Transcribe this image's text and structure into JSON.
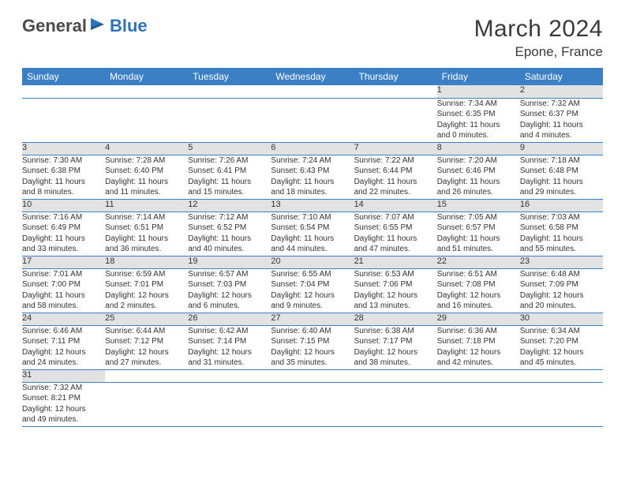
{
  "logo": {
    "general": "General",
    "blue": "Blue"
  },
  "title": "March 2024",
  "location": "Epone, France",
  "colors": {
    "header_bg": "#3b7fc4",
    "header_text": "#ffffff",
    "daynum_bg": "#e2e2e2",
    "row_divider": "#3b7fc4",
    "logo_general": "#4a4a4a",
    "logo_blue": "#2e74b5"
  },
  "day_headers": [
    "Sunday",
    "Monday",
    "Tuesday",
    "Wednesday",
    "Thursday",
    "Friday",
    "Saturday"
  ],
  "weeks": [
    [
      null,
      null,
      null,
      null,
      null,
      {
        "n": "1",
        "sr": "Sunrise: 7:34 AM",
        "ss": "Sunset: 6:35 PM",
        "dl1": "Daylight: 11 hours",
        "dl2": "and 0 minutes."
      },
      {
        "n": "2",
        "sr": "Sunrise: 7:32 AM",
        "ss": "Sunset: 6:37 PM",
        "dl1": "Daylight: 11 hours",
        "dl2": "and 4 minutes."
      }
    ],
    [
      {
        "n": "3",
        "sr": "Sunrise: 7:30 AM",
        "ss": "Sunset: 6:38 PM",
        "dl1": "Daylight: 11 hours",
        "dl2": "and 8 minutes."
      },
      {
        "n": "4",
        "sr": "Sunrise: 7:28 AM",
        "ss": "Sunset: 6:40 PM",
        "dl1": "Daylight: 11 hours",
        "dl2": "and 11 minutes."
      },
      {
        "n": "5",
        "sr": "Sunrise: 7:26 AM",
        "ss": "Sunset: 6:41 PM",
        "dl1": "Daylight: 11 hours",
        "dl2": "and 15 minutes."
      },
      {
        "n": "6",
        "sr": "Sunrise: 7:24 AM",
        "ss": "Sunset: 6:43 PM",
        "dl1": "Daylight: 11 hours",
        "dl2": "and 18 minutes."
      },
      {
        "n": "7",
        "sr": "Sunrise: 7:22 AM",
        "ss": "Sunset: 6:44 PM",
        "dl1": "Daylight: 11 hours",
        "dl2": "and 22 minutes."
      },
      {
        "n": "8",
        "sr": "Sunrise: 7:20 AM",
        "ss": "Sunset: 6:46 PM",
        "dl1": "Daylight: 11 hours",
        "dl2": "and 26 minutes."
      },
      {
        "n": "9",
        "sr": "Sunrise: 7:18 AM",
        "ss": "Sunset: 6:48 PM",
        "dl1": "Daylight: 11 hours",
        "dl2": "and 29 minutes."
      }
    ],
    [
      {
        "n": "10",
        "sr": "Sunrise: 7:16 AM",
        "ss": "Sunset: 6:49 PM",
        "dl1": "Daylight: 11 hours",
        "dl2": "and 33 minutes."
      },
      {
        "n": "11",
        "sr": "Sunrise: 7:14 AM",
        "ss": "Sunset: 6:51 PM",
        "dl1": "Daylight: 11 hours",
        "dl2": "and 36 minutes."
      },
      {
        "n": "12",
        "sr": "Sunrise: 7:12 AM",
        "ss": "Sunset: 6:52 PM",
        "dl1": "Daylight: 11 hours",
        "dl2": "and 40 minutes."
      },
      {
        "n": "13",
        "sr": "Sunrise: 7:10 AM",
        "ss": "Sunset: 6:54 PM",
        "dl1": "Daylight: 11 hours",
        "dl2": "and 44 minutes."
      },
      {
        "n": "14",
        "sr": "Sunrise: 7:07 AM",
        "ss": "Sunset: 6:55 PM",
        "dl1": "Daylight: 11 hours",
        "dl2": "and 47 minutes."
      },
      {
        "n": "15",
        "sr": "Sunrise: 7:05 AM",
        "ss": "Sunset: 6:57 PM",
        "dl1": "Daylight: 11 hours",
        "dl2": "and 51 minutes."
      },
      {
        "n": "16",
        "sr": "Sunrise: 7:03 AM",
        "ss": "Sunset: 6:58 PM",
        "dl1": "Daylight: 11 hours",
        "dl2": "and 55 minutes."
      }
    ],
    [
      {
        "n": "17",
        "sr": "Sunrise: 7:01 AM",
        "ss": "Sunset: 7:00 PM",
        "dl1": "Daylight: 11 hours",
        "dl2": "and 58 minutes."
      },
      {
        "n": "18",
        "sr": "Sunrise: 6:59 AM",
        "ss": "Sunset: 7:01 PM",
        "dl1": "Daylight: 12 hours",
        "dl2": "and 2 minutes."
      },
      {
        "n": "19",
        "sr": "Sunrise: 6:57 AM",
        "ss": "Sunset: 7:03 PM",
        "dl1": "Daylight: 12 hours",
        "dl2": "and 6 minutes."
      },
      {
        "n": "20",
        "sr": "Sunrise: 6:55 AM",
        "ss": "Sunset: 7:04 PM",
        "dl1": "Daylight: 12 hours",
        "dl2": "and 9 minutes."
      },
      {
        "n": "21",
        "sr": "Sunrise: 6:53 AM",
        "ss": "Sunset: 7:06 PM",
        "dl1": "Daylight: 12 hours",
        "dl2": "and 13 minutes."
      },
      {
        "n": "22",
        "sr": "Sunrise: 6:51 AM",
        "ss": "Sunset: 7:08 PM",
        "dl1": "Daylight: 12 hours",
        "dl2": "and 16 minutes."
      },
      {
        "n": "23",
        "sr": "Sunrise: 6:48 AM",
        "ss": "Sunset: 7:09 PM",
        "dl1": "Daylight: 12 hours",
        "dl2": "and 20 minutes."
      }
    ],
    [
      {
        "n": "24",
        "sr": "Sunrise: 6:46 AM",
        "ss": "Sunset: 7:11 PM",
        "dl1": "Daylight: 12 hours",
        "dl2": "and 24 minutes."
      },
      {
        "n": "25",
        "sr": "Sunrise: 6:44 AM",
        "ss": "Sunset: 7:12 PM",
        "dl1": "Daylight: 12 hours",
        "dl2": "and 27 minutes."
      },
      {
        "n": "26",
        "sr": "Sunrise: 6:42 AM",
        "ss": "Sunset: 7:14 PM",
        "dl1": "Daylight: 12 hours",
        "dl2": "and 31 minutes."
      },
      {
        "n": "27",
        "sr": "Sunrise: 6:40 AM",
        "ss": "Sunset: 7:15 PM",
        "dl1": "Daylight: 12 hours",
        "dl2": "and 35 minutes."
      },
      {
        "n": "28",
        "sr": "Sunrise: 6:38 AM",
        "ss": "Sunset: 7:17 PM",
        "dl1": "Daylight: 12 hours",
        "dl2": "and 38 minutes."
      },
      {
        "n": "29",
        "sr": "Sunrise: 6:36 AM",
        "ss": "Sunset: 7:18 PM",
        "dl1": "Daylight: 12 hours",
        "dl2": "and 42 minutes."
      },
      {
        "n": "30",
        "sr": "Sunrise: 6:34 AM",
        "ss": "Sunset: 7:20 PM",
        "dl1": "Daylight: 12 hours",
        "dl2": "and 45 minutes."
      }
    ],
    [
      {
        "n": "31",
        "sr": "Sunrise: 7:32 AM",
        "ss": "Sunset: 8:21 PM",
        "dl1": "Daylight: 12 hours",
        "dl2": "and 49 minutes."
      },
      null,
      null,
      null,
      null,
      null,
      null
    ]
  ]
}
